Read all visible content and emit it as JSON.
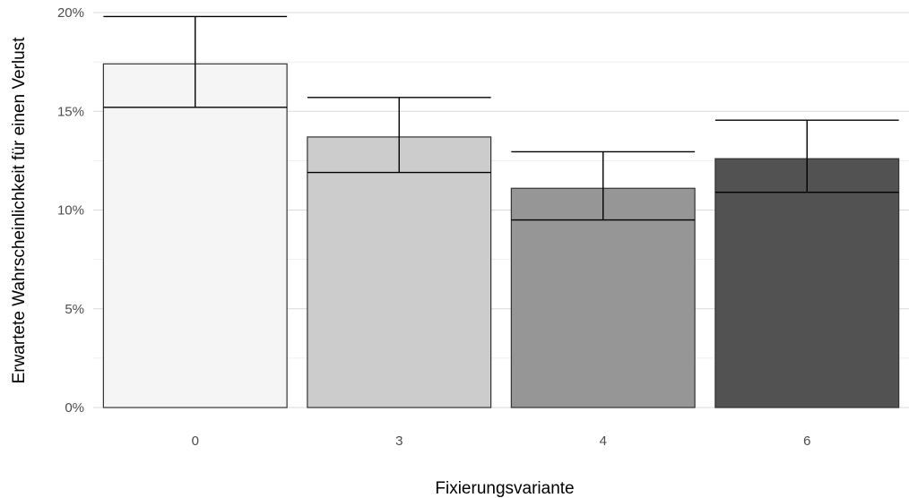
{
  "chart_data": {
    "type": "bar",
    "categories": [
      "0",
      "3",
      "4",
      "6"
    ],
    "values": [
      17.4,
      13.7,
      11.1,
      12.6
    ],
    "error_bars": [
      {
        "lower": 15.2,
        "upper": 19.8
      },
      {
        "lower": 11.9,
        "upper": 15.7
      },
      {
        "lower": 9.5,
        "upper": 12.95
      },
      {
        "lower": 10.9,
        "upper": 14.55
      }
    ],
    "bar_colors": [
      "#f5f5f5",
      "#cccccc",
      "#969696",
      "#525252"
    ],
    "xlabel": "Fixierungsvariante",
    "ylabel": "Erwartete Wahrscheinlichkeit für einen Verlust",
    "ylim": [
      0,
      20
    ],
    "y_ticks": [
      0,
      5,
      10,
      15,
      20
    ],
    "y_tick_labels": [
      "0%",
      "5%",
      "10%",
      "15%",
      "20%"
    ],
    "grid": true,
    "legend": "none"
  }
}
